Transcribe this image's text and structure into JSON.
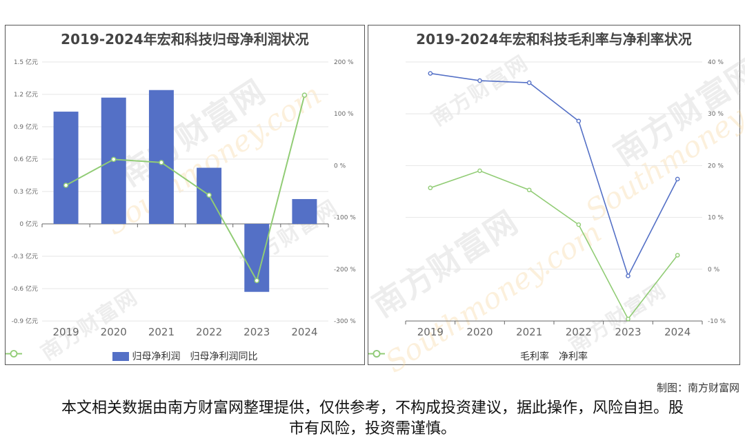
{
  "chart_data": [
    {
      "type": "bar",
      "title": "2019-2024年宏和科技归母净利润状况",
      "categories": [
        "2019",
        "2020",
        "2021",
        "2022",
        "2023",
        "2024"
      ],
      "series": [
        {
          "name": "归母净利润",
          "type": "bar",
          "axis": "left",
          "color": "#5470c6",
          "values": [
            1.04,
            1.17,
            1.24,
            0.52,
            -0.63,
            0.23
          ]
        },
        {
          "name": "归母净利润同比",
          "type": "line",
          "axis": "right",
          "color": "#91cc75",
          "values": [
            -38,
            12,
            6,
            -57,
            -222,
            136
          ]
        }
      ],
      "y_left": {
        "ticks": [
          "1.5 亿元",
          "1.2 亿元",
          "0.9 亿元",
          "0.6 亿元",
          "0.3 亿元",
          "0 亿元",
          "-0.3 亿元",
          "-0.6 亿元",
          "-0.9 亿元"
        ],
        "ylim": [
          -0.9,
          1.5
        ],
        "unit": "亿元"
      },
      "y_right": {
        "ticks": [
          "200 %",
          "100 %",
          "0 %",
          "-100 %",
          "-200 %",
          "-300 %"
        ],
        "ylim": [
          -300,
          200
        ],
        "unit": "%"
      },
      "grid": true,
      "legend": "bottom"
    },
    {
      "type": "line",
      "title": "2019-2024年宏和科技毛利率与净利率状况",
      "categories": [
        "2019",
        "2020",
        "2021",
        "2022",
        "2023",
        "2024"
      ],
      "series": [
        {
          "name": "毛利率",
          "color": "#5470c6",
          "values": [
            37.8,
            36.4,
            36.0,
            28.6,
            -1.3,
            17.4
          ]
        },
        {
          "name": "净利率",
          "color": "#91cc75",
          "values": [
            15.7,
            19.0,
            15.3,
            8.6,
            -9.6,
            2.7
          ]
        }
      ],
      "y_right": {
        "ticks": [
          "40 %",
          "30 %",
          "20 %",
          "10 %",
          "0 %",
          "-10 %"
        ],
        "ylim": [
          -10,
          40
        ],
        "unit": "%"
      },
      "grid": true,
      "legend": "bottom"
    }
  ],
  "watermark": {
    "cn": "南方财富网",
    "en": "Southmoney.com"
  },
  "credit": "制图：南方财富网",
  "disclaimer": "本文相关数据由南方财富网整理提供，仅供参考，不构成投资建议，据此操作，风险自担。股市有风险，投资需谨慎。"
}
